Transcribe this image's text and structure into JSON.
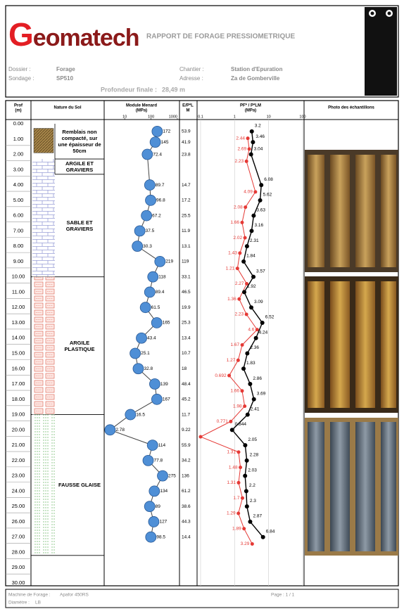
{
  "header": {
    "logo": "Geomatech",
    "title": "RAPPORT DE FORAGE PRESSIOMETRIQUE"
  },
  "info": {
    "fields": [
      {
        "label": "Dossier :",
        "value": "Forage"
      },
      {
        "label": "Sondage :",
        "value": "SP510"
      },
      {
        "label": "Chantier :",
        "value": "Station d'Epuration"
      },
      {
        "label": "Adresse :",
        "value": "Za de Gomberville"
      }
    ],
    "final_depth": {
      "label": "Profondeur finale :",
      "value": "28,49 m"
    }
  },
  "columns": {
    "depth": [
      "Prof",
      "(m)"
    ],
    "soil": "Nature du Sol",
    "module": [
      "Module Menard",
      "(MPa)"
    ],
    "ratio": [
      "E/P*L",
      "M"
    ],
    "pressure": [
      "PF* / P*LM",
      "(MPa)"
    ],
    "photo": "Photo des échantillons"
  },
  "depth_lim": [
    0,
    30
  ],
  "depth_labels": [
    "0.00",
    "1.00",
    "2.00",
    "3.00",
    "4.00",
    "5.00",
    "6.00",
    "7.00",
    "8.00",
    "9.00",
    "10.00",
    "11.00",
    "12.00",
    "13.00",
    "14.00",
    "15.00",
    "16.00",
    "17.00",
    "18.00",
    "19.00",
    "20.00",
    "21.00",
    "22.00",
    "23.00",
    "24.00",
    "25.00",
    "26.00",
    "27.00",
    "28.00",
    "29.00",
    "30.00"
  ],
  "layers": [
    {
      "name": "Remblais non compacté, sur une épaisseur de 50cm",
      "top": 0,
      "bottom": 2.3,
      "pattern": "fill"
    },
    {
      "name": "ARGILE ET GRAVIERS",
      "top": 2.3,
      "bottom": 3.3,
      "pattern": "sand"
    },
    {
      "name": "SABLE ET GRAVIERS",
      "top": 3.3,
      "bottom": 10,
      "pattern": "sand"
    },
    {
      "name": "ARGILE PLASTIQUE",
      "top": 10,
      "bottom": 19,
      "pattern": "clay"
    },
    {
      "name": "FAUSSE GLAISE",
      "top": 19,
      "bottom": 28.2,
      "pattern": "marl"
    }
  ],
  "tests": {
    "depths": [
      0.5,
      1.2,
      2,
      4,
      5,
      6,
      7,
      8,
      9,
      10,
      11,
      12,
      13,
      14,
      15,
      16,
      17,
      18,
      19,
      20,
      21,
      22,
      23,
      24,
      25,
      26,
      27
    ],
    "module": {
      "xlim": [
        2,
        1000
      ],
      "xticks": [
        10,
        100,
        1000
      ],
      "log": true,
      "color": "#4f8fd6",
      "values": [
        172,
        145,
        72.4,
        89.7,
        96.8,
        67.2,
        37.5,
        30.3,
        219,
        118,
        89.4,
        61.5,
        165,
        43.4,
        25.1,
        32.8,
        139,
        167,
        16.5,
        2.78,
        114,
        77.8,
        275,
        134,
        89,
        127,
        98.5
      ]
    },
    "ratio": [
      53.9,
      41.9,
      23.8,
      14.7,
      17.2,
      25.5,
      11.9,
      13.1,
      119,
      33.1,
      46.5,
      19.9,
      25.3,
      13.4,
      10.7,
      18,
      48.4,
      45.2,
      11.7,
      9.22,
      55.9,
      34.2,
      136,
      61.2,
      38.6,
      44.3,
      14.4
    ],
    "pressure": {
      "xlim": [
        0.1,
        100
      ],
      "xticks": [
        0.1,
        1,
        10,
        100
      ],
      "log": true,
      "series": [
        {
          "color": "#e53935",
          "values": [
            2.44,
            2.69,
            2.23,
            4.09,
            2.08,
            1.66,
            2.02,
            1.43,
            1.21,
            2.27,
            1.36,
            2.23,
            4.6,
            1.67,
            1.27,
            0.692,
            1.66,
            1.98,
            0.771,
            0.1,
            1.31,
            1.48,
            1.31,
            1.7,
            1.29,
            1.89,
            3.29
          ],
          "value_labels": [
            "2.44",
            "2.69",
            "2.23",
            "4.09",
            "2.08",
            "1.66",
            "2.02",
            "1.43",
            "1.21",
            "2.27",
            "1.36",
            "2.23",
            "4.6",
            "1.67",
            "1.27",
            "0.692",
            "1.66",
            "1.98",
            "0.771",
            null,
            "1.31",
            "1.48",
            "1.31",
            "1.7",
            "1.29",
            "1.89",
            "3.29"
          ]
        },
        {
          "color": "#000000",
          "values": [
            3.2,
            3.46,
            3.04,
            6.08,
            5.62,
            3.63,
            3.16,
            2.31,
            1.84,
            3.57,
            1.92,
            3.09,
            6.52,
            4.24,
            2.36,
            1.83,
            2.86,
            3.69,
            2.41,
            0.844,
            2.05,
            2.28,
            2.03,
            2.2,
            2.3,
            2.87,
            6.84
          ],
          "value_labels": [
            "3.2",
            "3.46",
            "3.04",
            "6.08",
            "5.62",
            "3.63",
            "3.16",
            "2.31",
            "1.84",
            "3.57",
            "1.92",
            "3.09",
            "6.52",
            "4.24",
            "2.36",
            "1.83",
            "2.86",
            "3.69",
            "2.41",
            "0.844",
            "2.05",
            "2.28",
            "2.03",
            "2.2",
            "2.3",
            "2.87",
            "6.84"
          ]
        }
      ]
    }
  },
  "footer": {
    "machine": {
      "label": "Machine de Forage :",
      "value": "Apafor 450RS"
    },
    "diameter": {
      "label": "Diamètre :",
      "value": "LB"
    },
    "page": "Page : 1 / 1"
  }
}
